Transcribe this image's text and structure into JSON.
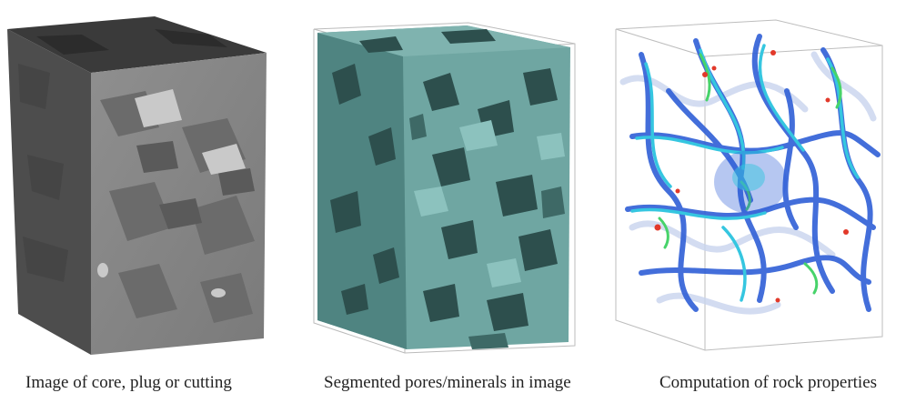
{
  "panels": [
    {
      "caption": "Image of core, plug or cutting"
    },
    {
      "caption": "Segmented pores/minerals in image"
    },
    {
      "caption": "Computation of rock properties"
    }
  ],
  "colors": {
    "core_face_light": "#9a9a9a",
    "core_face_dark": "#4a4a4a",
    "pore_teal": "#5f9c98",
    "pore_dark": "#2d4f4d",
    "flow_blue": "#2f5fd6",
    "flow_cyan": "#35c6e0",
    "flow_green": "#47d36a",
    "flow_red": "#e2392a"
  }
}
